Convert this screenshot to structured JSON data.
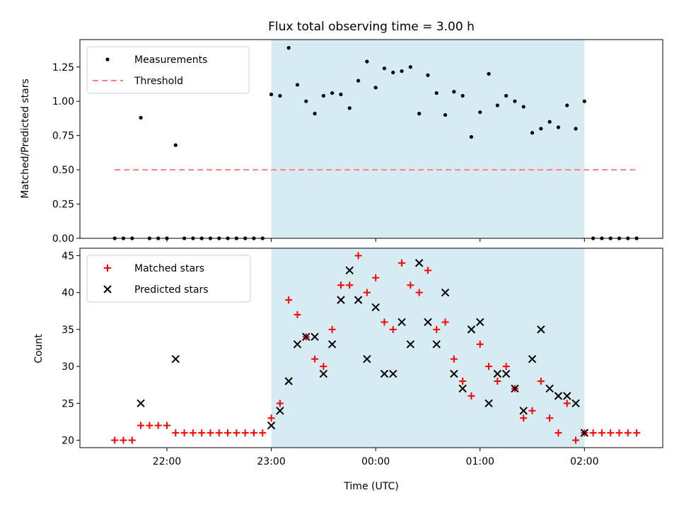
{
  "chart_data": [
    {
      "type": "scatter",
      "title": "Flux total observing time = 3.00 h",
      "xlabel": "",
      "ylabel": "Matched/Predicted stars",
      "ylim": [
        0,
        1.45
      ],
      "yticks": [
        "0.00",
        "0.25",
        "0.50",
        "0.75",
        "1.00",
        "1.25"
      ],
      "ytick_values": [
        0,
        0.25,
        0.5,
        0.75,
        1.0,
        1.25
      ],
      "xlim": [
        "21:10",
        "02:45"
      ],
      "shaded_span": [
        "23:00",
        "02:00"
      ],
      "shade_color": "#add8e6",
      "legend_position": "upper left",
      "legend": [
        {
          "label": "Measurements",
          "marker": "dot",
          "color": "#000000"
        },
        {
          "label": "Threshold",
          "marker": "dashed-line",
          "color": "#ff7f7f"
        }
      ],
      "threshold": {
        "value": 0.5,
        "x_range": [
          "21:30",
          "02:30"
        ]
      },
      "series": [
        {
          "name": "Measurements",
          "points": [
            [
              "21:30",
              0
            ],
            [
              "21:35",
              0
            ],
            [
              "21:40",
              0
            ],
            [
              "21:45",
              0.88
            ],
            [
              "21:50",
              0
            ],
            [
              "21:55",
              0
            ],
            [
              "22:00",
              0
            ],
            [
              "22:05",
              0.68
            ],
            [
              "22:10",
              0
            ],
            [
              "22:15",
              0
            ],
            [
              "22:20",
              0
            ],
            [
              "22:25",
              0
            ],
            [
              "22:30",
              0
            ],
            [
              "22:35",
              0
            ],
            [
              "22:40",
              0
            ],
            [
              "22:45",
              0
            ],
            [
              "22:50",
              0
            ],
            [
              "22:55",
              0
            ],
            [
              "23:00",
              1.05
            ],
            [
              "23:05",
              1.04
            ],
            [
              "23:10",
              1.39
            ],
            [
              "23:15",
              1.12
            ],
            [
              "23:20",
              1.0
            ],
            [
              "23:25",
              0.91
            ],
            [
              "23:30",
              1.04
            ],
            [
              "23:35",
              1.06
            ],
            [
              "23:40",
              1.05
            ],
            [
              "23:45",
              0.95
            ],
            [
              "23:50",
              1.15
            ],
            [
              "23:55",
              1.29
            ],
            [
              "00:00",
              1.1
            ],
            [
              "00:05",
              1.24
            ],
            [
              "00:10",
              1.21
            ],
            [
              "00:15",
              1.22
            ],
            [
              "00:20",
              1.25
            ],
            [
              "00:25",
              0.91
            ],
            [
              "00:30",
              1.19
            ],
            [
              "00:35",
              1.06
            ],
            [
              "00:40",
              0.9
            ],
            [
              "00:45",
              1.07
            ],
            [
              "00:50",
              1.04
            ],
            [
              "00:55",
              0.74
            ],
            [
              "01:00",
              0.92
            ],
            [
              "01:05",
              1.2
            ],
            [
              "01:10",
              0.97
            ],
            [
              "01:15",
              1.04
            ],
            [
              "01:20",
              1.0
            ],
            [
              "01:25",
              0.96
            ],
            [
              "01:30",
              0.77
            ],
            [
              "01:35",
              0.8
            ],
            [
              "01:40",
              0.85
            ],
            [
              "01:45",
              0.81
            ],
            [
              "01:50",
              0.97
            ],
            [
              "01:55",
              0.8
            ],
            [
              "02:00",
              1.0
            ],
            [
              "02:05",
              0
            ],
            [
              "02:10",
              0
            ],
            [
              "02:15",
              0
            ],
            [
              "02:20",
              0
            ],
            [
              "02:25",
              0
            ],
            [
              "02:30",
              0
            ]
          ]
        }
      ]
    },
    {
      "type": "scatter",
      "title": "",
      "xlabel": "Time (UTC)",
      "ylabel": "Count",
      "ylim": [
        19,
        46
      ],
      "yticks": [
        "20",
        "25",
        "30",
        "35",
        "40",
        "45"
      ],
      "ytick_values": [
        20,
        25,
        30,
        35,
        40,
        45
      ],
      "xlim": [
        "21:10",
        "02:45"
      ],
      "xticks": [
        "22:00",
        "23:00",
        "00:00",
        "01:00",
        "02:00"
      ],
      "shaded_span": [
        "23:00",
        "02:00"
      ],
      "shade_color": "#add8e6",
      "legend_position": "upper left",
      "legend": [
        {
          "label": "Matched stars",
          "marker": "plus",
          "color": "#ff0000"
        },
        {
          "label": "Predicted stars",
          "marker": "x",
          "color": "#000000"
        }
      ],
      "series": [
        {
          "name": "Matched stars",
          "points": [
            [
              "21:30",
              20
            ],
            [
              "21:35",
              20
            ],
            [
              "21:40",
              20
            ],
            [
              "21:45",
              22
            ],
            [
              "21:50",
              22
            ],
            [
              "21:55",
              22
            ],
            [
              "22:00",
              22
            ],
            [
              "22:05",
              21
            ],
            [
              "22:10",
              21
            ],
            [
              "22:15",
              21
            ],
            [
              "22:20",
              21
            ],
            [
              "22:25",
              21
            ],
            [
              "22:30",
              21
            ],
            [
              "22:35",
              21
            ],
            [
              "22:40",
              21
            ],
            [
              "22:45",
              21
            ],
            [
              "22:50",
              21
            ],
            [
              "22:55",
              21
            ],
            [
              "23:00",
              23
            ],
            [
              "23:05",
              25
            ],
            [
              "23:10",
              39
            ],
            [
              "23:15",
              37
            ],
            [
              "23:20",
              34
            ],
            [
              "23:25",
              31
            ],
            [
              "23:30",
              30
            ],
            [
              "23:35",
              35
            ],
            [
              "23:40",
              41
            ],
            [
              "23:45",
              41
            ],
            [
              "23:50",
              45
            ],
            [
              "23:55",
              40
            ],
            [
              "00:00",
              42
            ],
            [
              "00:05",
              36
            ],
            [
              "00:10",
              35
            ],
            [
              "00:15",
              44
            ],
            [
              "00:20",
              41
            ],
            [
              "00:25",
              40
            ],
            [
              "00:30",
              43
            ],
            [
              "00:35",
              35
            ],
            [
              "00:40",
              36
            ],
            [
              "00:45",
              31
            ],
            [
              "00:50",
              28
            ],
            [
              "00:55",
              26
            ],
            [
              "01:00",
              33
            ],
            [
              "01:05",
              30
            ],
            [
              "01:10",
              28
            ],
            [
              "01:15",
              30
            ],
            [
              "01:20",
              27
            ],
            [
              "01:25",
              23
            ],
            [
              "01:30",
              24
            ],
            [
              "01:35",
              28
            ],
            [
              "01:40",
              23
            ],
            [
              "01:45",
              21
            ],
            [
              "01:50",
              25
            ],
            [
              "01:55",
              20
            ],
            [
              "02:00",
              21
            ],
            [
              "02:05",
              21
            ],
            [
              "02:10",
              21
            ],
            [
              "02:15",
              21
            ],
            [
              "02:20",
              21
            ],
            [
              "02:25",
              21
            ],
            [
              "02:30",
              21
            ]
          ]
        },
        {
          "name": "Predicted stars",
          "points": [
            [
              "21:45",
              25
            ],
            [
              "22:05",
              31
            ],
            [
              "23:00",
              22
            ],
            [
              "23:05",
              24
            ],
            [
              "23:10",
              28
            ],
            [
              "23:15",
              33
            ],
            [
              "23:20",
              34
            ],
            [
              "23:25",
              34
            ],
            [
              "23:30",
              29
            ],
            [
              "23:35",
              33
            ],
            [
              "23:40",
              39
            ],
            [
              "23:45",
              43
            ],
            [
              "23:50",
              39
            ],
            [
              "23:55",
              31
            ],
            [
              "00:00",
              38
            ],
            [
              "00:05",
              29
            ],
            [
              "00:10",
              29
            ],
            [
              "00:15",
              36
            ],
            [
              "00:20",
              33
            ],
            [
              "00:25",
              44
            ],
            [
              "00:30",
              36
            ],
            [
              "00:35",
              33
            ],
            [
              "00:40",
              40
            ],
            [
              "00:45",
              29
            ],
            [
              "00:50",
              27
            ],
            [
              "00:55",
              35
            ],
            [
              "01:00",
              36
            ],
            [
              "01:05",
              25
            ],
            [
              "01:10",
              29
            ],
            [
              "01:15",
              29
            ],
            [
              "01:20",
              27
            ],
            [
              "01:25",
              24
            ],
            [
              "01:30",
              31
            ],
            [
              "01:35",
              35
            ],
            [
              "01:40",
              27
            ],
            [
              "01:45",
              26
            ],
            [
              "01:50",
              26
            ],
            [
              "01:55",
              25
            ],
            [
              "02:00",
              21
            ]
          ]
        }
      ]
    }
  ]
}
